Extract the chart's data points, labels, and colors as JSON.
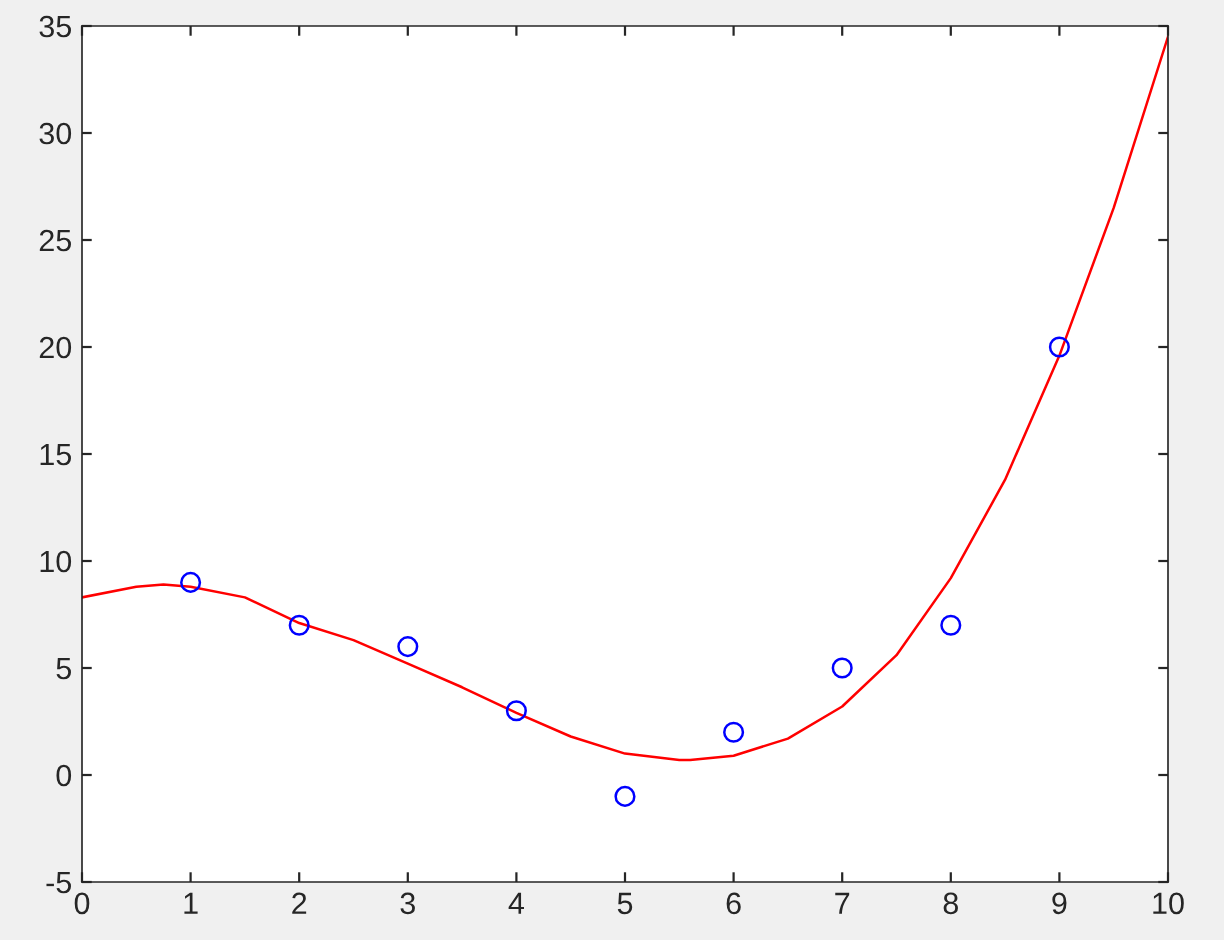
{
  "chart_data": {
    "type": "scatter",
    "xlim": [
      0,
      10
    ],
    "ylim": [
      -5,
      35
    ],
    "xticks": [
      0,
      1,
      2,
      3,
      4,
      5,
      6,
      7,
      8,
      9,
      10
    ],
    "yticks": [
      -5,
      0,
      5,
      10,
      15,
      20,
      25,
      30,
      35
    ],
    "grid": false,
    "series": [
      {
        "color": "#0000ff",
        "marker": "circle",
        "x": [
          1,
          2,
          3,
          4,
          5,
          6,
          7,
          8,
          9
        ],
        "values": [
          9,
          7,
          6,
          3,
          -1,
          2,
          5,
          7,
          20
        ]
      },
      {
        "type": "line",
        "color": "#ff0000",
        "marker": "none",
        "line_style": "solid",
        "x": [
          0,
          0.5,
          0.75,
          1,
          1.5,
          2,
          2.5,
          3,
          3.5,
          4,
          4.5,
          5,
          5.5,
          5.6,
          6,
          6.5,
          7,
          7.5,
          8,
          8.5,
          9,
          9.5,
          10
        ],
        "values": [
          8.3,
          8.8,
          8.9,
          8.8,
          8.3,
          7.1,
          6.3,
          5.2,
          4.1,
          2.9,
          1.8,
          1.0,
          0.7,
          0.7,
          0.9,
          1.7,
          3.2,
          5.6,
          9.2,
          13.8,
          19.6,
          26.5,
          34.5
        ]
      }
    ]
  }
}
